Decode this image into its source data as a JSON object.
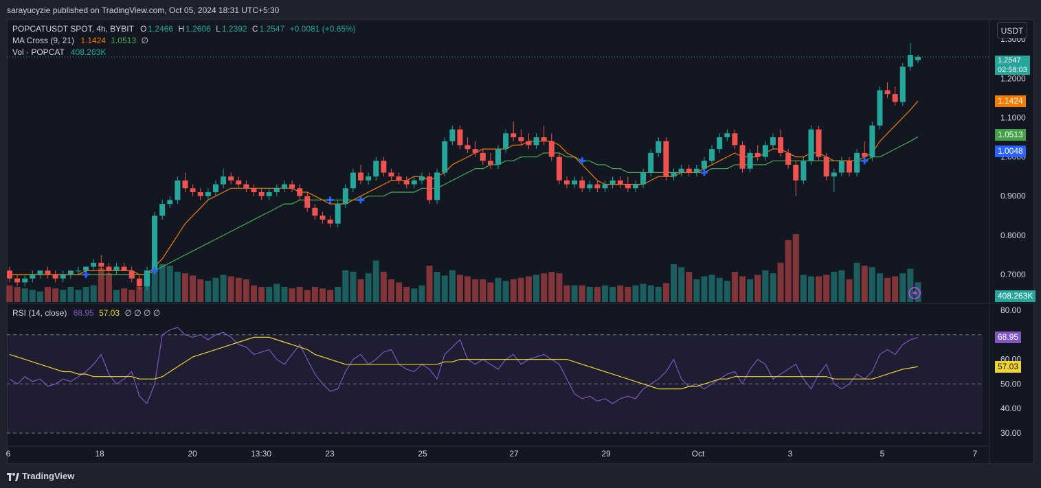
{
  "header": {
    "published": "sarayucyzie published on TradingView.com, Oct 05, 2024 18:31 UTC+5:30"
  },
  "legend": {
    "symbol": "POPCATUSDT SPOT, 4h, BYBIT",
    "o_label": "O",
    "o": "1.2466",
    "h_label": "H",
    "h": "1.2606",
    "l_label": "L",
    "l": "1.2392",
    "c_label": "C",
    "c": "1.2547",
    "change": "+0.0081 (+0.65%)",
    "ma_label": "MA Cross (9, 21)",
    "ma_fast": "1.1424",
    "ma_slow": "1.0513",
    "ma_extra": "∅",
    "vol_label": "Vol · POPCAT",
    "vol_value": "408.263K",
    "rsi_label": "RSI (14, close)",
    "rsi_value": "68.95",
    "rsi_ma": "57.03",
    "rsi_extra": "∅ ∅ ∅ ∅"
  },
  "currency_button": "USDT",
  "price_tags": {
    "last": "1.2547",
    "countdown": "02:58:03",
    "ma_fast": "1.1424",
    "ma_slow": "1.0513",
    "cross": "1.0048",
    "volume": "408.263K",
    "rsi": "68.95",
    "rsi_ma": "57.03"
  },
  "colors": {
    "up": "#26a69a",
    "down": "#ef5350",
    "ma_fast": "#f57c00",
    "ma_slow": "#4caf50",
    "rsi": "#7e57c2",
    "rsi_ma": "#f0d530",
    "cross": "#2962ff",
    "bg": "#131722"
  },
  "footer": {
    "brand": "TradingView"
  },
  "chart_data": {
    "type": "candlestick",
    "price_axis": {
      "ticks": [
        "1.3000",
        "1.2000",
        "1.1000",
        "1.0000",
        "0.9000",
        "0.8000",
        "0.7000"
      ],
      "range": [
        0.63,
        1.33
      ]
    },
    "rsi_axis": {
      "ticks": [
        "80.00",
        "70.00",
        "60.00",
        "50.00",
        "40.00",
        "30.00"
      ],
      "range": [
        30,
        80
      ],
      "bands": [
        30,
        50,
        70
      ]
    },
    "x_ticks": [
      "6",
      "18",
      "20",
      "13:30",
      "23",
      "25",
      "27",
      "29",
      "Oct",
      "3",
      "5",
      "7"
    ],
    "candles": [
      [
        0.71,
        0.72,
        0.68,
        0.69
      ],
      [
        0.69,
        0.7,
        0.67,
        0.68
      ],
      [
        0.68,
        0.7,
        0.67,
        0.69
      ],
      [
        0.69,
        0.71,
        0.68,
        0.7
      ],
      [
        0.7,
        0.71,
        0.69,
        0.71
      ],
      [
        0.71,
        0.72,
        0.69,
        0.7
      ],
      [
        0.7,
        0.71,
        0.68,
        0.69
      ],
      [
        0.69,
        0.71,
        0.68,
        0.7
      ],
      [
        0.7,
        0.71,
        0.69,
        0.71
      ],
      [
        0.71,
        0.72,
        0.7,
        0.71
      ],
      [
        0.71,
        0.72,
        0.7,
        0.72
      ],
      [
        0.72,
        0.74,
        0.71,
        0.73
      ],
      [
        0.73,
        0.75,
        0.71,
        0.72
      ],
      [
        0.72,
        0.73,
        0.7,
        0.71
      ],
      [
        0.71,
        0.73,
        0.7,
        0.72
      ],
      [
        0.72,
        0.73,
        0.71,
        0.71
      ],
      [
        0.71,
        0.72,
        0.68,
        0.69
      ],
      [
        0.69,
        0.7,
        0.66,
        0.67
      ],
      [
        0.67,
        0.72,
        0.66,
        0.71
      ],
      [
        0.71,
        0.86,
        0.7,
        0.85
      ],
      [
        0.85,
        0.89,
        0.84,
        0.88
      ],
      [
        0.88,
        0.9,
        0.87,
        0.89
      ],
      [
        0.89,
        0.95,
        0.88,
        0.94
      ],
      [
        0.94,
        0.96,
        0.91,
        0.92
      ],
      [
        0.92,
        0.93,
        0.9,
        0.91
      ],
      [
        0.91,
        0.92,
        0.89,
        0.9
      ],
      [
        0.9,
        0.92,
        0.89,
        0.91
      ],
      [
        0.91,
        0.94,
        0.9,
        0.93
      ],
      [
        0.93,
        0.97,
        0.92,
        0.95
      ],
      [
        0.95,
        0.96,
        0.93,
        0.94
      ],
      [
        0.94,
        0.95,
        0.92,
        0.93
      ],
      [
        0.93,
        0.94,
        0.91,
        0.92
      ],
      [
        0.92,
        0.93,
        0.9,
        0.91
      ],
      [
        0.91,
        0.92,
        0.89,
        0.9
      ],
      [
        0.9,
        0.92,
        0.89,
        0.91
      ],
      [
        0.91,
        0.93,
        0.9,
        0.92
      ],
      [
        0.92,
        0.94,
        0.91,
        0.93
      ],
      [
        0.93,
        0.94,
        0.91,
        0.92
      ],
      [
        0.92,
        0.93,
        0.89,
        0.9
      ],
      [
        0.9,
        0.91,
        0.86,
        0.87
      ],
      [
        0.87,
        0.88,
        0.84,
        0.85
      ],
      [
        0.85,
        0.86,
        0.83,
        0.84
      ],
      [
        0.84,
        0.85,
        0.82,
        0.83
      ],
      [
        0.83,
        0.89,
        0.82,
        0.88
      ],
      [
        0.88,
        0.93,
        0.87,
        0.92
      ],
      [
        0.92,
        0.97,
        0.91,
        0.96
      ],
      [
        0.96,
        0.98,
        0.93,
        0.94
      ],
      [
        0.94,
        0.96,
        0.93,
        0.95
      ],
      [
        0.95,
        1.0,
        0.94,
        0.99
      ],
      [
        0.99,
        1.0,
        0.95,
        0.96
      ],
      [
        0.96,
        0.97,
        0.94,
        0.95
      ],
      [
        0.95,
        0.96,
        0.93,
        0.94
      ],
      [
        0.94,
        0.95,
        0.92,
        0.93
      ],
      [
        0.93,
        0.95,
        0.92,
        0.94
      ],
      [
        0.94,
        0.96,
        0.93,
        0.95
      ],
      [
        0.95,
        0.96,
        0.88,
        0.89
      ],
      [
        0.89,
        0.97,
        0.88,
        0.96
      ],
      [
        0.96,
        1.05,
        0.95,
        1.04
      ],
      [
        1.04,
        1.08,
        1.03,
        1.07
      ],
      [
        1.07,
        1.08,
        1.02,
        1.03
      ],
      [
        1.03,
        1.05,
        1.01,
        1.02
      ],
      [
        1.02,
        1.04,
        1.0,
        1.01
      ],
      [
        1.01,
        1.02,
        0.98,
        0.99
      ],
      [
        0.99,
        1.01,
        0.97,
        0.98
      ],
      [
        0.98,
        1.03,
        0.97,
        1.02
      ],
      [
        1.02,
        1.07,
        1.01,
        1.06
      ],
      [
        1.06,
        1.09,
        1.04,
        1.05
      ],
      [
        1.05,
        1.07,
        1.03,
        1.04
      ],
      [
        1.04,
        1.06,
        1.02,
        1.03
      ],
      [
        1.03,
        1.06,
        1.02,
        1.05
      ],
      [
        1.05,
        1.08,
        1.03,
        1.04
      ],
      [
        1.04,
        1.06,
        0.99,
        1.0
      ],
      [
        1.0,
        1.01,
        0.93,
        0.94
      ],
      [
        0.94,
        0.95,
        0.92,
        0.93
      ],
      [
        0.93,
        0.95,
        0.92,
        0.94
      ],
      [
        0.94,
        0.95,
        0.91,
        0.92
      ],
      [
        0.92,
        0.94,
        0.91,
        0.93
      ],
      [
        0.93,
        0.94,
        0.91,
        0.92
      ],
      [
        0.92,
        0.94,
        0.91,
        0.93
      ],
      [
        0.93,
        0.95,
        0.92,
        0.94
      ],
      [
        0.94,
        0.95,
        0.92,
        0.93
      ],
      [
        0.93,
        0.95,
        0.91,
        0.92
      ],
      [
        0.92,
        0.94,
        0.91,
        0.93
      ],
      [
        0.93,
        0.97,
        0.92,
        0.96
      ],
      [
        0.96,
        1.02,
        0.95,
        1.01
      ],
      [
        1.01,
        1.05,
        1.0,
        1.04
      ],
      [
        1.04,
        1.05,
        0.94,
        0.95
      ],
      [
        0.95,
        0.97,
        0.94,
        0.96
      ],
      [
        0.96,
        0.98,
        0.95,
        0.97
      ],
      [
        0.97,
        0.98,
        0.95,
        0.96
      ],
      [
        0.96,
        0.98,
        0.95,
        0.97
      ],
      [
        0.97,
        1.0,
        0.96,
        0.99
      ],
      [
        0.99,
        1.03,
        0.98,
        1.02
      ],
      [
        1.02,
        1.06,
        1.01,
        1.05
      ],
      [
        1.05,
        1.07,
        1.04,
        1.06
      ],
      [
        1.06,
        1.07,
        1.02,
        1.03
      ],
      [
        1.03,
        1.04,
        0.96,
        0.97
      ],
      [
        0.97,
        1.02,
        0.96,
        1.01
      ],
      [
        1.01,
        1.03,
        0.99,
        1.0
      ],
      [
        1.0,
        1.04,
        0.99,
        1.03
      ],
      [
        1.03,
        1.06,
        1.02,
        1.05
      ],
      [
        1.05,
        1.07,
        1.0,
        1.01
      ],
      [
        1.01,
        1.02,
        0.97,
        0.98
      ],
      [
        0.98,
        0.99,
        0.9,
        0.94
      ],
      [
        0.94,
        1.0,
        0.93,
        0.99
      ],
      [
        0.99,
        1.08,
        0.98,
        1.07
      ],
      [
        1.07,
        1.08,
        0.99,
        1.0
      ],
      [
        1.0,
        1.01,
        0.94,
        0.95
      ],
      [
        0.95,
        0.97,
        0.91,
        0.96
      ],
      [
        0.96,
        1.0,
        0.95,
        0.99
      ],
      [
        0.99,
        1.0,
        0.95,
        0.96
      ],
      [
        0.96,
        1.02,
        0.95,
        1.01
      ],
      [
        1.01,
        1.04,
        0.99,
        1.0
      ],
      [
        1.0,
        1.09,
        0.99,
        1.08
      ],
      [
        1.08,
        1.18,
        1.07,
        1.17
      ],
      [
        1.17,
        1.19,
        1.15,
        1.16
      ],
      [
        1.16,
        1.18,
        1.13,
        1.14
      ],
      [
        1.14,
        1.24,
        1.13,
        1.23
      ],
      [
        1.23,
        1.29,
        1.22,
        1.26
      ],
      [
        1.2466,
        1.2606,
        1.2392,
        1.2547
      ]
    ],
    "ma_fast": [
      0.7,
      0.7,
      0.7,
      0.7,
      0.7,
      0.7,
      0.7,
      0.7,
      0.7,
      0.7,
      0.71,
      0.71,
      0.71,
      0.71,
      0.71,
      0.71,
      0.71,
      0.7,
      0.7,
      0.72,
      0.74,
      0.77,
      0.8,
      0.83,
      0.85,
      0.87,
      0.89,
      0.9,
      0.91,
      0.92,
      0.92,
      0.92,
      0.92,
      0.92,
      0.92,
      0.92,
      0.92,
      0.92,
      0.91,
      0.91,
      0.9,
      0.89,
      0.88,
      0.88,
      0.88,
      0.89,
      0.9,
      0.91,
      0.92,
      0.93,
      0.94,
      0.94,
      0.94,
      0.95,
      0.95,
      0.94,
      0.95,
      0.96,
      0.98,
      0.99,
      1.0,
      1.01,
      1.02,
      1.02,
      1.02,
      1.02,
      1.03,
      1.03,
      1.04,
      1.04,
      1.04,
      1.04,
      1.03,
      1.01,
      1.0,
      0.98,
      0.96,
      0.94,
      0.93,
      0.93,
      0.93,
      0.93,
      0.93,
      0.93,
      0.94,
      0.95,
      0.95,
      0.95,
      0.96,
      0.96,
      0.96,
      0.97,
      0.98,
      0.99,
      1.0,
      1.01,
      1.0,
      1.0,
      1.0,
      1.01,
      1.02,
      1.02,
      1.01,
      1.0,
      1.0,
      1.01,
      1.01,
      1.0,
      0.99,
      0.99,
      0.99,
      0.99,
      1.0,
      1.01,
      1.04,
      1.06,
      1.08,
      1.1,
      1.12,
      1.1424
    ],
    "ma_slow": [
      0.7,
      0.7,
      0.7,
      0.7,
      0.7,
      0.7,
      0.7,
      0.7,
      0.7,
      0.7,
      0.7,
      0.7,
      0.7,
      0.7,
      0.7,
      0.7,
      0.7,
      0.7,
      0.7,
      0.71,
      0.72,
      0.73,
      0.74,
      0.75,
      0.76,
      0.77,
      0.78,
      0.79,
      0.8,
      0.81,
      0.82,
      0.83,
      0.84,
      0.85,
      0.86,
      0.87,
      0.88,
      0.88,
      0.89,
      0.89,
      0.89,
      0.89,
      0.89,
      0.89,
      0.89,
      0.89,
      0.89,
      0.9,
      0.9,
      0.9,
      0.91,
      0.91,
      0.91,
      0.91,
      0.92,
      0.92,
      0.92,
      0.93,
      0.94,
      0.95,
      0.96,
      0.97,
      0.97,
      0.98,
      0.98,
      0.99,
      0.99,
      1.0,
      1.0,
      1.0,
      1.01,
      1.01,
      1.01,
      1.0,
      1.0,
      0.99,
      0.99,
      0.98,
      0.98,
      0.97,
      0.97,
      0.96,
      0.96,
      0.96,
      0.96,
      0.96,
      0.96,
      0.96,
      0.96,
      0.96,
      0.96,
      0.96,
      0.97,
      0.97,
      0.97,
      0.98,
      0.98,
      0.98,
      0.98,
      0.98,
      0.99,
      0.99,
      0.99,
      0.99,
      0.99,
      0.99,
      0.99,
      0.99,
      0.99,
      0.99,
      0.99,
      0.99,
      0.99,
      1.0,
      1.0,
      1.01,
      1.02,
      1.03,
      1.04,
      1.0513
    ],
    "volume": [
      22,
      20,
      18,
      16,
      14,
      20,
      18,
      16,
      20,
      16,
      20,
      22,
      45,
      38,
      16,
      18,
      16,
      20,
      42,
      55,
      50,
      48,
      40,
      38,
      35,
      30,
      28,
      32,
      36,
      34,
      32,
      30,
      22,
      20,
      20,
      24,
      20,
      18,
      20,
      16,
      20,
      18,
      16,
      20,
      42,
      40,
      30,
      38,
      55,
      40,
      30,
      26,
      20,
      18,
      22,
      48,
      40,
      35,
      42,
      36,
      34,
      30,
      30,
      26,
      32,
      28,
      30,
      32,
      34,
      36,
      38,
      40,
      38,
      22,
      22,
      22,
      20,
      20,
      22,
      20,
      22,
      20,
      22,
      24,
      22,
      20,
      25,
      50,
      46,
      40,
      30,
      34,
      36,
      32,
      28,
      40,
      34,
      30,
      36,
      42,
      38,
      52,
      82,
      90,
      36,
      34,
      34,
      36,
      40,
      42,
      30,
      52,
      48,
      46,
      38,
      32,
      34,
      38,
      44,
      26
    ],
    "rsi": [
      52,
      50,
      53,
      51,
      52,
      49,
      50,
      52,
      51,
      53,
      55,
      58,
      62,
      54,
      50,
      52,
      55,
      45,
      42,
      50,
      70,
      72,
      73,
      70,
      69,
      70,
      68,
      70,
      71,
      69,
      66,
      65,
      62,
      63,
      64,
      60,
      58,
      62,
      66,
      60,
      54,
      50,
      47,
      48,
      55,
      60,
      62,
      58,
      60,
      63,
      64,
      58,
      56,
      55,
      58,
      56,
      52,
      62,
      65,
      68,
      60,
      58,
      60,
      58,
      56,
      60,
      62,
      58,
      60,
      61,
      62,
      60,
      58,
      52,
      46,
      44,
      45,
      43,
      44,
      42,
      44,
      45,
      44,
      48,
      50,
      52,
      55,
      60,
      52,
      49,
      50,
      48,
      50,
      52,
      54,
      55,
      50,
      56,
      60,
      58,
      52,
      54,
      56,
      58,
      52,
      48,
      54,
      58,
      50,
      48,
      50,
      54,
      52,
      55,
      62,
      64,
      62,
      66,
      68,
      68.95
    ],
    "rsi_ma": [
      62,
      61,
      60,
      59,
      58,
      57,
      56,
      55,
      55,
      54,
      54,
      53,
      53,
      53,
      53,
      53,
      53,
      52,
      52,
      52,
      53,
      55,
      57,
      59,
      61,
      62,
      63,
      64,
      65,
      66,
      67,
      68,
      69,
      69,
      69,
      68,
      67,
      66,
      65,
      64,
      62,
      61,
      60,
      59,
      58,
      58,
      58,
      58,
      58,
      58,
      58,
      58,
      58,
      58,
      58,
      58,
      58,
      59,
      59,
      60,
      60,
      60,
      60,
      60,
      60,
      60,
      60,
      60,
      60,
      60,
      60,
      60,
      60,
      60,
      59,
      58,
      57,
      56,
      55,
      54,
      53,
      52,
      51,
      50,
      49,
      48,
      48,
      48,
      48,
      49,
      49,
      50,
      51,
      52,
      52,
      53,
      53,
      53,
      53,
      53,
      53,
      53,
      53,
      53,
      53,
      53,
      53,
      53,
      52,
      52,
      52,
      52,
      52,
      52,
      53,
      54,
      55,
      56,
      56.5,
      57.03
    ]
  }
}
